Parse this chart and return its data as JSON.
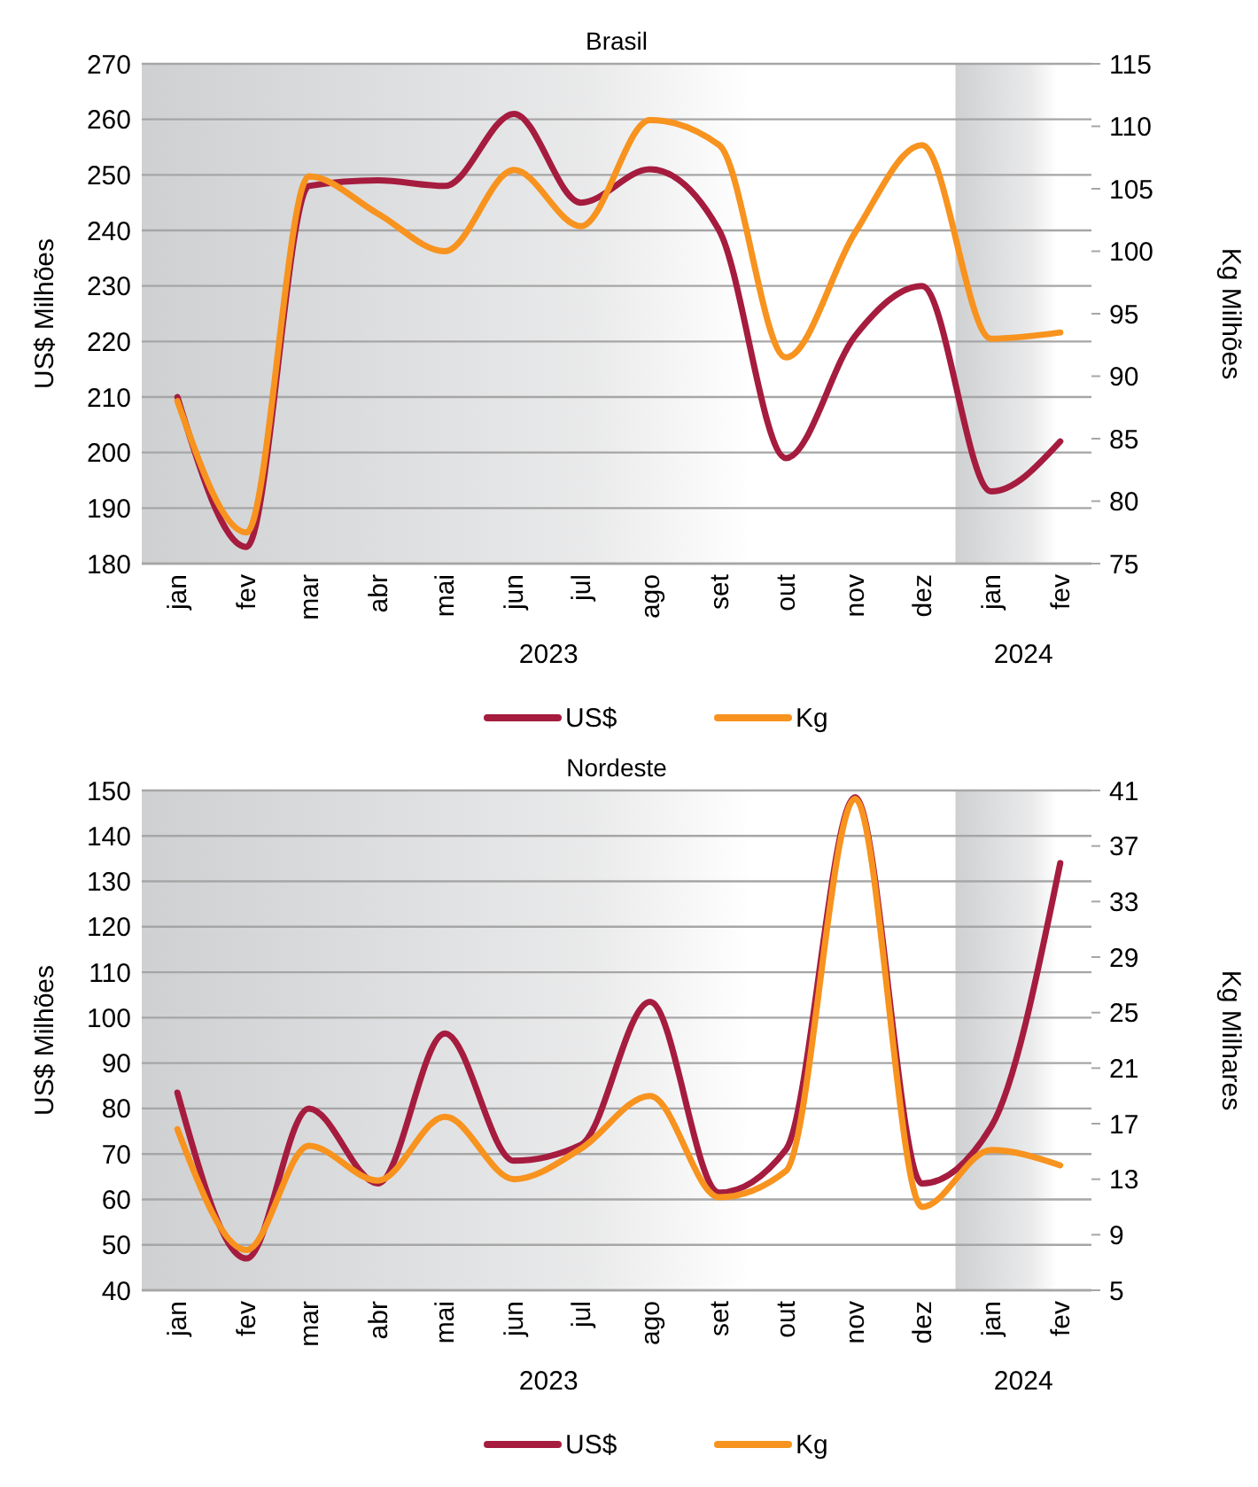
{
  "chart_data": [
    {
      "type": "line",
      "title": "Brasil",
      "ylabel": "US$ Milhões",
      "y2label": "Kg Milhões",
      "x": [
        "2023-01",
        "2023-02",
        "2023-03",
        "2023-04",
        "2023-05",
        "2023-06",
        "2023-07",
        "2023-08",
        "2023-09",
        "2023-10",
        "2023-11",
        "2023-12",
        "2024-01",
        "2024-02"
      ],
      "xlim": [
        "2022-12-16",
        "2024-02-15"
      ],
      "xticks": [
        {
          "value": "2023-01",
          "label": "jan"
        },
        {
          "value": "2023-02",
          "label": "fev"
        },
        {
          "value": "2023-03",
          "label": "mar"
        },
        {
          "value": "2023-04",
          "label": "abr"
        },
        {
          "value": "2023-05",
          "label": "mai"
        },
        {
          "value": "2023-06",
          "label": "jun"
        },
        {
          "value": "2023-07",
          "label": "jul"
        },
        {
          "value": "2023-08",
          "label": "ago"
        },
        {
          "value": "2023-09",
          "label": "set"
        },
        {
          "value": "2023-10",
          "label": "out"
        },
        {
          "value": "2023-11",
          "label": "nov"
        },
        {
          "value": "2023-12",
          "label": "dez"
        },
        {
          "value": "2024-01",
          "label": "jan"
        },
        {
          "value": "2024-02",
          "label": "fev"
        }
      ],
      "series": [
        {
          "name": "US$",
          "color": "#a51c3f",
          "values": [
            210,
            183,
            248,
            249,
            248,
            261,
            245,
            251,
            240,
            199,
            221,
            230,
            193,
            202
          ]
        },
        {
          "name": "Kg",
          "color": "#f7931e",
          "axis": "y2",
          "values": [
            88,
            77.5,
            106,
            103,
            100,
            106.5,
            102,
            110.5,
            108.5,
            91.5,
            101.5,
            108.5,
            93,
            93.5
          ]
        }
      ],
      "ylim": [
        180,
        270
      ],
      "yticks": [
        180,
        190,
        200,
        210,
        220,
        230,
        240,
        250,
        260,
        270
      ],
      "y2lim": [
        75,
        115
      ],
      "y2ticks": [
        75,
        80,
        85,
        90,
        95,
        100,
        105,
        110,
        115
      ],
      "bands": [
        {
          "axis": "x",
          "from": "2022-12-16",
          "to": "2023-12-16",
          "label": "2023",
          "color": "#cfd0d2"
        },
        {
          "axis": "x",
          "from": "2023-12-16",
          "to": "2024-02-15",
          "label": "2024",
          "color": "#cfd0d2"
        }
      ],
      "grid": "y",
      "legend": "bottom",
      "marker": "none",
      "line_style": "solid"
    },
    {
      "type": "line",
      "title": "Nordeste",
      "ylabel": "US$ Milhões",
      "y2label": "Kg Milhares",
      "x": [
        "2023-01",
        "2023-02",
        "2023-03",
        "2023-04",
        "2023-05",
        "2023-06",
        "2023-07",
        "2023-08",
        "2023-09",
        "2023-10",
        "2023-11",
        "2023-12",
        "2024-01",
        "2024-02"
      ],
      "xlim": [
        "2022-12-16",
        "2024-02-15"
      ],
      "xticks": [
        {
          "value": "2023-01",
          "label": "jan"
        },
        {
          "value": "2023-02",
          "label": "fev"
        },
        {
          "value": "2023-03",
          "label": "mar"
        },
        {
          "value": "2023-04",
          "label": "abr"
        },
        {
          "value": "2023-05",
          "label": "mai"
        },
        {
          "value": "2023-06",
          "label": "jun"
        },
        {
          "value": "2023-07",
          "label": "jul"
        },
        {
          "value": "2023-08",
          "label": "ago"
        },
        {
          "value": "2023-09",
          "label": "set"
        },
        {
          "value": "2023-10",
          "label": "out"
        },
        {
          "value": "2023-11",
          "label": "nov"
        },
        {
          "value": "2023-12",
          "label": "dez"
        },
        {
          "value": "2024-01",
          "label": "jan"
        },
        {
          "value": "2024-02",
          "label": "fev"
        }
      ],
      "series": [
        {
          "name": "US$",
          "color": "#a51c3f",
          "values": [
            83.5,
            47,
            80,
            63.5,
            96.5,
            68.5,
            72,
            103.5,
            61.5,
            71,
            148.5,
            63.5,
            76,
            134
          ]
        },
        {
          "name": "Kg",
          "color": "#f7931e",
          "axis": "y2",
          "values": [
            16.6,
            7.9,
            15.4,
            12.9,
            17.5,
            13,
            15.2,
            19,
            11.7,
            13.6,
            40.4,
            11,
            15.1,
            14
          ]
        }
      ],
      "ylim": [
        40,
        150
      ],
      "yticks": [
        40,
        50,
        60,
        70,
        80,
        90,
        100,
        110,
        120,
        130,
        140,
        150
      ],
      "y2lim": [
        5,
        41
      ],
      "y2ticks": [
        5,
        9,
        13,
        17,
        21,
        25,
        29,
        33,
        37,
        41
      ],
      "bands": [
        {
          "axis": "x",
          "from": "2022-12-16",
          "to": "2023-12-16",
          "label": "2023",
          "color": "#cfd0d2"
        },
        {
          "axis": "x",
          "from": "2023-12-16",
          "to": "2024-02-15",
          "label": "2024",
          "color": "#cfd0d2"
        }
      ],
      "grid": "y",
      "legend": "bottom",
      "marker": "none",
      "line_style": "solid"
    }
  ]
}
